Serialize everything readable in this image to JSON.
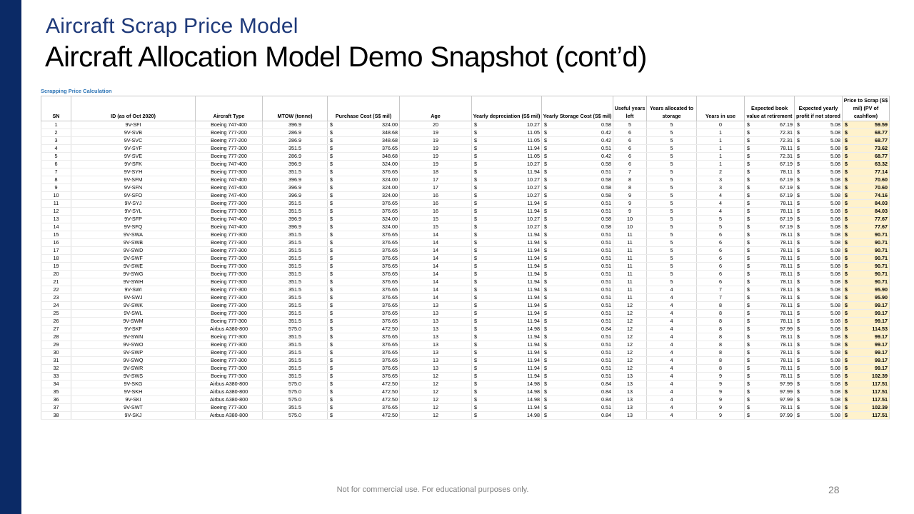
{
  "slide": {
    "subtitle": "Aircraft Scrap Price Model",
    "title": "Aircraft Allocation Model Demo Snapshot (cont’d)",
    "footer": "Not for commercial use. For educational purposes only.",
    "page_number": "28",
    "colors": {
      "sidebar": "#0b2a66",
      "subtitle": "#1f3a7a",
      "caption": "#2e75b6",
      "price_highlight": "#fff2cc"
    }
  },
  "table": {
    "caption": "Scrapping Price Calculation",
    "currency_symbol": "$",
    "headers": [
      "SN",
      "ID (as of Oct 2020)",
      "Aircraft Type",
      "MTOW (tonne)",
      "Purchase Cost (S$ mil)",
      "Age",
      "Yearly depreciation (S$ mil)",
      "Yearly Storage Cost (S$ mil)",
      "Useful years left",
      "Years allocated to storage",
      "Years in use",
      "Expected book value at retirement",
      "Expected yearly profit if not stored",
      "Price to Scrap (S$ mil) (PV of cashflow)"
    ],
    "rows": [
      [
        "1",
        "9V-SFI",
        "Boeing 747-400",
        "396.9",
        "324.00",
        "20",
        "10.27",
        "0.58",
        "5",
        "5",
        "0",
        "67.19",
        "5.08",
        "59.59"
      ],
      [
        "2",
        "9V-SVB",
        "Boeing 777-200",
        "286.9",
        "348.68",
        "19",
        "11.05",
        "0.42",
        "6",
        "5",
        "1",
        "72.31",
        "5.08",
        "68.77"
      ],
      [
        "3",
        "9V-SVC",
        "Boeing 777-200",
        "286.9",
        "348.68",
        "19",
        "11.05",
        "0.42",
        "6",
        "5",
        "1",
        "72.31",
        "5.08",
        "68.77"
      ],
      [
        "4",
        "9V-SYF",
        "Boeing 777-300",
        "351.5",
        "376.65",
        "19",
        "11.94",
        "0.51",
        "6",
        "5",
        "1",
        "78.11",
        "5.08",
        "73.62"
      ],
      [
        "5",
        "9V-SVE",
        "Boeing 777-200",
        "286.9",
        "348.68",
        "19",
        "11.05",
        "0.42",
        "6",
        "5",
        "1",
        "72.31",
        "5.08",
        "68.77"
      ],
      [
        "6",
        "9V-SFK",
        "Boeing 747-400",
        "396.9",
        "324.00",
        "19",
        "10.27",
        "0.58",
        "6",
        "5",
        "1",
        "67.19",
        "5.08",
        "63.32"
      ],
      [
        "7",
        "9V-SYH",
        "Boeing 777-300",
        "351.5",
        "376.65",
        "18",
        "11.94",
        "0.51",
        "7",
        "5",
        "2",
        "78.11",
        "5.08",
        "77.14"
      ],
      [
        "8",
        "9V-SFM",
        "Boeing 747-400",
        "396.9",
        "324.00",
        "17",
        "10.27",
        "0.58",
        "8",
        "5",
        "3",
        "67.19",
        "5.08",
        "70.60"
      ],
      [
        "9",
        "9V-SFN",
        "Boeing 747-400",
        "396.9",
        "324.00",
        "17",
        "10.27",
        "0.58",
        "8",
        "5",
        "3",
        "67.19",
        "5.08",
        "70.60"
      ],
      [
        "10",
        "9V-SFO",
        "Boeing 747-400",
        "396.9",
        "324.00",
        "16",
        "10.27",
        "0.58",
        "9",
        "5",
        "4",
        "67.19",
        "5.08",
        "74.16"
      ],
      [
        "11",
        "9V-SYJ",
        "Boeing 777-300",
        "351.5",
        "376.65",
        "16",
        "11.94",
        "0.51",
        "9",
        "5",
        "4",
        "78.11",
        "5.08",
        "84.03"
      ],
      [
        "12",
        "9V-SYL",
        "Boeing 777-300",
        "351.5",
        "376.65",
        "16",
        "11.94",
        "0.51",
        "9",
        "5",
        "4",
        "78.11",
        "5.08",
        "84.03"
      ],
      [
        "13",
        "9V-SFP",
        "Boeing 747-400",
        "396.9",
        "324.00",
        "15",
        "10.27",
        "0.58",
        "10",
        "5",
        "5",
        "67.19",
        "5.08",
        "77.67"
      ],
      [
        "14",
        "9V-SFQ",
        "Boeing 747-400",
        "396.9",
        "324.00",
        "15",
        "10.27",
        "0.58",
        "10",
        "5",
        "5",
        "67.19",
        "5.08",
        "77.67"
      ],
      [
        "15",
        "9V-SWA",
        "Boeing 777-300",
        "351.5",
        "376.65",
        "14",
        "11.94",
        "0.51",
        "11",
        "5",
        "6",
        "78.11",
        "5.08",
        "90.71"
      ],
      [
        "16",
        "9V-SWB",
        "Boeing 777-300",
        "351.5",
        "376.65",
        "14",
        "11.94",
        "0.51",
        "11",
        "5",
        "6",
        "78.11",
        "5.08",
        "90.71"
      ],
      [
        "17",
        "9V-SWD",
        "Boeing 777-300",
        "351.5",
        "376.65",
        "14",
        "11.94",
        "0.51",
        "11",
        "5",
        "6",
        "78.11",
        "5.08",
        "90.71"
      ],
      [
        "18",
        "9V-SWF",
        "Boeing 777-300",
        "351.5",
        "376.65",
        "14",
        "11.94",
        "0.51",
        "11",
        "5",
        "6",
        "78.11",
        "5.08",
        "90.71"
      ],
      [
        "19",
        "9V-SWE",
        "Boeing 777-300",
        "351.5",
        "376.65",
        "14",
        "11.94",
        "0.51",
        "11",
        "5",
        "6",
        "78.11",
        "5.08",
        "90.71"
      ],
      [
        "20",
        "9V-SWG",
        "Boeing 777-300",
        "351.5",
        "376.65",
        "14",
        "11.94",
        "0.51",
        "11",
        "5",
        "6",
        "78.11",
        "5.08",
        "90.71"
      ],
      [
        "21",
        "9V-SWH",
        "Boeing 777-300",
        "351.5",
        "376.65",
        "14",
        "11.94",
        "0.51",
        "11",
        "5",
        "6",
        "78.11",
        "5.08",
        "90.71"
      ],
      [
        "22",
        "9V-SWI",
        "Boeing 777-300",
        "351.5",
        "376.65",
        "14",
        "11.94",
        "0.51",
        "11",
        "4",
        "7",
        "78.11",
        "5.08",
        "95.90"
      ],
      [
        "23",
        "9V-SWJ",
        "Boeing 777-300",
        "351.5",
        "376.65",
        "14",
        "11.94",
        "0.51",
        "11",
        "4",
        "7",
        "78.11",
        "5.08",
        "95.90"
      ],
      [
        "24",
        "9V-SWK",
        "Boeing 777-300",
        "351.5",
        "376.65",
        "13",
        "11.94",
        "0.51",
        "12",
        "4",
        "8",
        "78.11",
        "5.08",
        "99.17"
      ],
      [
        "25",
        "9V-SWL",
        "Boeing 777-300",
        "351.5",
        "376.65",
        "13",
        "11.94",
        "0.51",
        "12",
        "4",
        "8",
        "78.11",
        "5.08",
        "99.17"
      ],
      [
        "26",
        "9V-SWM",
        "Boeing 777-300",
        "351.5",
        "376.65",
        "13",
        "11.94",
        "0.51",
        "12",
        "4",
        "8",
        "78.11",
        "5.08",
        "99.17"
      ],
      [
        "27",
        "9V-SKF",
        "Airbus A380-800",
        "575.0",
        "472.50",
        "13",
        "14.98",
        "0.84",
        "12",
        "4",
        "8",
        "97.99",
        "5.08",
        "114.53"
      ],
      [
        "28",
        "9V-SWN",
        "Boeing 777-300",
        "351.5",
        "376.65",
        "13",
        "11.94",
        "0.51",
        "12",
        "4",
        "8",
        "78.11",
        "5.08",
        "99.17"
      ],
      [
        "29",
        "9V-SWO",
        "Boeing 777-300",
        "351.5",
        "376.65",
        "13",
        "11.94",
        "0.51",
        "12",
        "4",
        "8",
        "78.11",
        "5.08",
        "99.17"
      ],
      [
        "30",
        "9V-SWP",
        "Boeing 777-300",
        "351.5",
        "376.65",
        "13",
        "11.94",
        "0.51",
        "12",
        "4",
        "8",
        "78.11",
        "5.08",
        "99.17"
      ],
      [
        "31",
        "9V-SWQ",
        "Boeing 777-300",
        "351.5",
        "376.65",
        "13",
        "11.94",
        "0.51",
        "12",
        "4",
        "8",
        "78.11",
        "5.08",
        "99.17"
      ],
      [
        "32",
        "9V-SWR",
        "Boeing 777-300",
        "351.5",
        "376.65",
        "13",
        "11.94",
        "0.51",
        "12",
        "4",
        "8",
        "78.11",
        "5.08",
        "99.17"
      ],
      [
        "33",
        "9V-SWS",
        "Boeing 777-300",
        "351.5",
        "376.65",
        "12",
        "11.94",
        "0.51",
        "13",
        "4",
        "9",
        "78.11",
        "5.08",
        "102.39"
      ],
      [
        "34",
        "9V-SKG",
        "Airbus A380-800",
        "575.0",
        "472.50",
        "12",
        "14.98",
        "0.84",
        "13",
        "4",
        "9",
        "97.99",
        "5.08",
        "117.51"
      ],
      [
        "35",
        "9V-SKH",
        "Airbus A380-800",
        "575.0",
        "472.50",
        "12",
        "14.98",
        "0.84",
        "13",
        "4",
        "9",
        "97.99",
        "5.08",
        "117.51"
      ],
      [
        "36",
        "9V-SKI",
        "Airbus A380-800",
        "575.0",
        "472.50",
        "12",
        "14.98",
        "0.84",
        "13",
        "4",
        "9",
        "97.99",
        "5.08",
        "117.51"
      ],
      [
        "37",
        "9V-SWT",
        "Boeing 777-300",
        "351.5",
        "376.65",
        "12",
        "11.94",
        "0.51",
        "13",
        "4",
        "9",
        "78.11",
        "5.08",
        "102.39"
      ],
      [
        "38",
        "9V-SKJ",
        "Airbus A380-800",
        "575.0",
        "472.50",
        "12",
        "14.98",
        "0.84",
        "13",
        "4",
        "9",
        "97.99",
        "5.08",
        "117.51"
      ]
    ]
  }
}
